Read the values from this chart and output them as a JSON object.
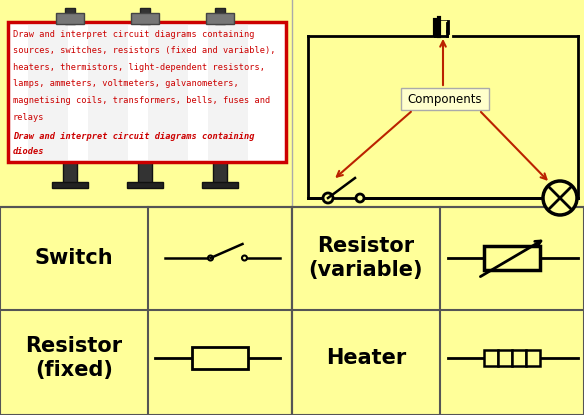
{
  "bg_color": "#FFFF99",
  "billboard_text_lines": [
    "Draw and interpret circuit diagrams containing",
    "sources, switches, resistors (fixed and variable),",
    "heaters, thermistors, light-dependent resistors,",
    "lamps, ammeters, voltmeters, galvanometers,",
    "magnetising coils, transformers, bells, fuses and",
    "relays"
  ],
  "billboard_bold_lines": [
    "Draw and interpret circuit diagrams containing",
    "diodes"
  ],
  "text_color": "#CC0000",
  "components_label": "Components",
  "switch_label": "Switch",
  "resistor_fixed_label": "Resistor\n(fixed)",
  "resistor_variable_label": "Resistor\n(variable)",
  "heater_label": "Heater",
  "black": "#000000",
  "dark_gray": "#333333",
  "med_gray": "#777777",
  "light_gray": "#AAAAAA",
  "red_arrow": "#BB2200",
  "cell_border": "#555555"
}
